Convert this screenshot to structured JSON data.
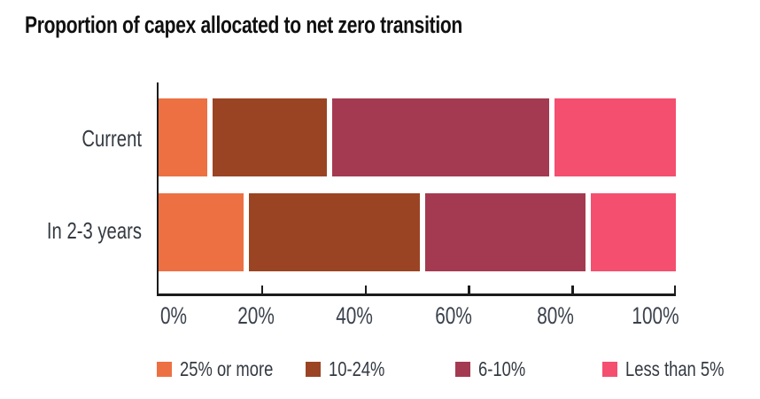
{
  "title": "Proportion of capex allocated to net zero transition",
  "chart_data": {
    "type": "bar",
    "orientation": "horizontal",
    "stacked": true,
    "unit": "%",
    "title": "Proportion of capex allocated to net zero transition",
    "categories": [
      "Current",
      "In 2-3 years"
    ],
    "series": [
      {
        "name": "25% or more",
        "color": "#ED7043",
        "values": [
          10,
          17
        ]
      },
      {
        "name": "10-24%",
        "color": "#9B4423",
        "values": [
          23,
          34
        ]
      },
      {
        "name": "6-10%",
        "color": "#A43A51",
        "values": [
          43,
          32
        ]
      },
      {
        "name": "Less than 5%",
        "color": "#F44F6F",
        "values": [
          24,
          17
        ]
      }
    ],
    "x_axis": {
      "tick_labels": [
        "0%",
        "20%",
        "40%",
        "60%",
        "80%",
        "100%"
      ],
      "range": [
        0,
        100
      ]
    },
    "legend_position": "bottom",
    "grid": false
  },
  "colors": {
    "axis": "#1c1c1c",
    "title_text": "#101010",
    "label_text": "#343a42",
    "background": "#ffffff"
  }
}
